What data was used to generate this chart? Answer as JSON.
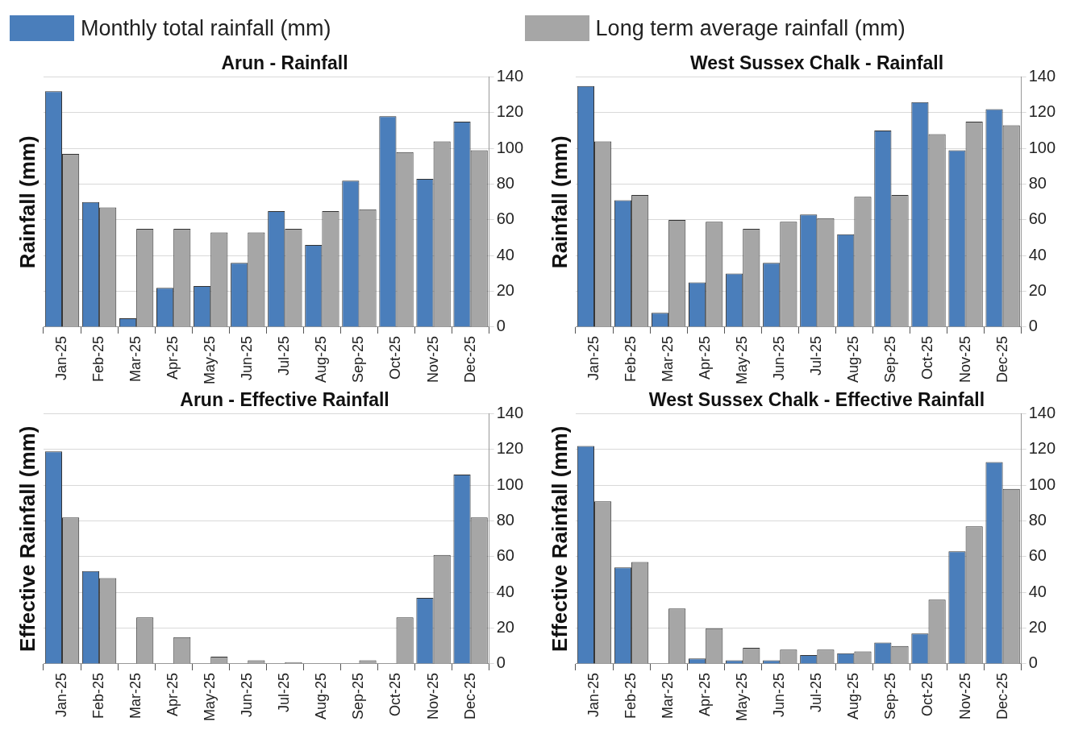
{
  "chart_data": [
    {
      "type": "bar",
      "title": "Arun - Rainfall",
      "ylabel": "Rainfall (mm)",
      "categories": [
        "Jan-25",
        "Feb-25",
        "Mar-25",
        "Apr-25",
        "May-25",
        "Jun-25",
        "Jul-25",
        "Aug-25",
        "Sep-25",
        "Oct-25",
        "Nov-25",
        "Dec-25"
      ],
      "series": [
        {
          "name": "Monthly total rainfall (mm)",
          "color": "#4a7ebb",
          "values": [
            132,
            70,
            5,
            22,
            23,
            36,
            65,
            46,
            82,
            118,
            83,
            115
          ]
        },
        {
          "name": "Long term average rainfall (mm)",
          "color": "#a6a6a6",
          "values": [
            97,
            67,
            55,
            55,
            53,
            53,
            55,
            65,
            66,
            98,
            104,
            99
          ]
        }
      ],
      "ylim": [
        0,
        140
      ],
      "yticks": [
        0,
        20,
        40,
        60,
        80,
        100,
        120,
        140
      ],
      "grid": "y",
      "legend": "top"
    },
    {
      "type": "bar",
      "title": "West Sussex Chalk - Rainfall",
      "ylabel": "Rainfall (mm)",
      "categories": [
        "Jan-25",
        "Feb-25",
        "Mar-25",
        "Apr-25",
        "May-25",
        "Jun-25",
        "Jul-25",
        "Aug-25",
        "Sep-25",
        "Oct-25",
        "Nov-25",
        "Dec-25"
      ],
      "series": [
        {
          "color": "#4a7ebb",
          "values": [
            135,
            71,
            8,
            25,
            30,
            36,
            63,
            52,
            110,
            126,
            99,
            122
          ]
        },
        {
          "color": "#a6a6a6",
          "values": [
            104,
            74,
            60,
            59,
            55,
            59,
            61,
            73,
            74,
            108,
            115,
            113
          ]
        }
      ],
      "ylim": [
        0,
        140
      ],
      "yticks": [
        0,
        20,
        40,
        60,
        80,
        100,
        120,
        140
      ],
      "grid": "y"
    },
    {
      "type": "bar",
      "title": "Arun - Effective Rainfall",
      "ylabel": "Effective Rainfall (mm)",
      "categories": [
        "Jan-25",
        "Feb-25",
        "Mar-25",
        "Apr-25",
        "May-25",
        "Jun-25",
        "Jul-25",
        "Aug-25",
        "Sep-25",
        "Oct-25",
        "Nov-25",
        "Dec-25"
      ],
      "series": [
        {
          "color": "#4a7ebb",
          "values": [
            119,
            52,
            0,
            0,
            0,
            0,
            0,
            0,
            0,
            0,
            37,
            106
          ]
        },
        {
          "color": "#a6a6a6",
          "values": [
            82,
            48,
            26,
            15,
            4,
            2,
            1,
            0,
            2,
            26,
            61,
            82
          ]
        }
      ],
      "ylim": [
        0,
        140
      ],
      "yticks": [
        0,
        20,
        40,
        60,
        80,
        100,
        120,
        140
      ],
      "grid": "y"
    },
    {
      "type": "bar",
      "title": "West Sussex Chalk - Effective Rainfall",
      "ylabel": "Effective Rainfall (mm)",
      "categories": [
        "Jan-25",
        "Feb-25",
        "Mar-25",
        "Apr-25",
        "May-25",
        "Jun-25",
        "Jul-25",
        "Aug-25",
        "Sep-25",
        "Oct-25",
        "Nov-25",
        "Dec-25"
      ],
      "series": [
        {
          "color": "#4a7ebb",
          "values": [
            122,
            54,
            0,
            3,
            2,
            2,
            5,
            6,
            12,
            17,
            63,
            113
          ]
        },
        {
          "color": "#a6a6a6",
          "values": [
            91,
            57,
            31,
            20,
            9,
            8,
            8,
            7,
            10,
            36,
            77,
            98
          ]
        }
      ],
      "ylim": [
        0,
        140
      ],
      "yticks": [
        0,
        20,
        40,
        60,
        80,
        100,
        120,
        140
      ],
      "grid": "y"
    }
  ]
}
